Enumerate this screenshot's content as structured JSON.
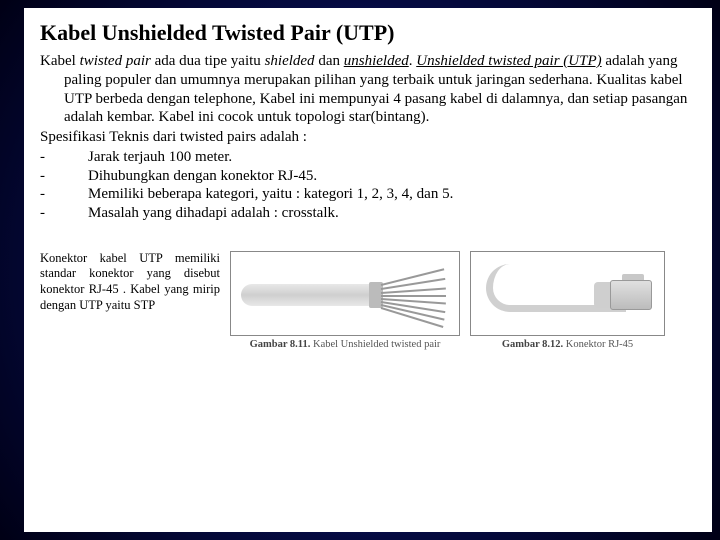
{
  "title": "Kabel Unshielded Twisted Pair (UTP)",
  "intro": {
    "seg1": "Kabel ",
    "seg2_italic": "twisted pair",
    "seg3": " ada dua tipe yaitu ",
    "seg4_italic": "shielded",
    "seg5": " dan ",
    "seg6_under_italic": "unshielded",
    "seg7": ". ",
    "seg8_under_italic": "Unshielded twisted pair (UTP)",
    "seg9": " adalah yang paling populer dan umumnya merupakan pilihan yang terbaik untuk jaringan sederhana. Kualitas kabel UTP berbeda dengan telephone, Kabel ini mempunyai 4 pasang kabel di dalamnya, dan setiap pasangan adalah kembar. Kabel ini cocok untuk topologi star(bintang)."
  },
  "spec_heading": "Spesifikasi Teknis dari twisted pairs adalah :",
  "specs": [
    "Jarak terjauh 100 meter.",
    "Dihubungkan dengan konektor RJ-45.",
    "Memiliki beberapa kategori, yaitu : kategori 1, 2, 3, 4, dan 5.",
    "Masalah yang dihadapi adalah : crosstalk."
  ],
  "connector_text": "Konektor kabel UTP memiliki standar konektor yang disebut konektor RJ-45 . Kabel yang mirip dengan UTP yaitu STP",
  "fig1": {
    "label_bold": "Gambar 8.11.",
    "label_rest": " Kabel Unshielded twisted pair"
  },
  "fig2": {
    "label_bold": "Gambar 8.12.",
    "label_rest": " Konektor RJ-45"
  },
  "colors": {
    "bg_inner": "#2a5fd8",
    "bg_outer": "#000015",
    "page_bg": "#ffffff",
    "text": "#000000",
    "caption": "#555555"
  }
}
